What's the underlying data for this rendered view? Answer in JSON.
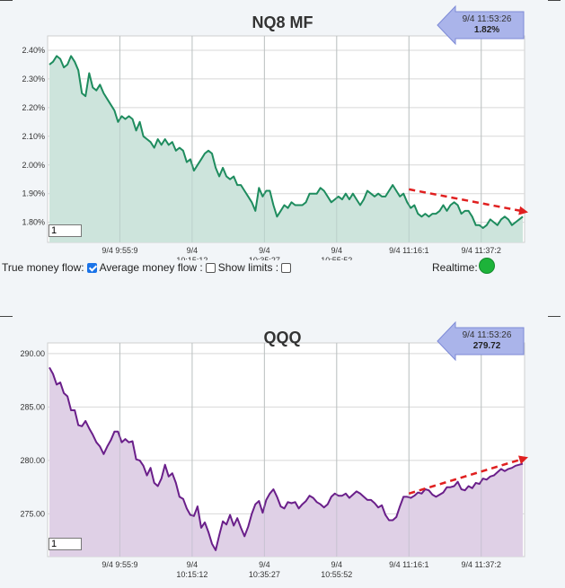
{
  "controls": {
    "true_money_flow_label": "True money flow:",
    "average_money_flow_label": "Average money flow :",
    "show_limits_label": "Show limits :",
    "realtime_label": "Realtime:",
    "realtime_color": "#1db33a"
  },
  "charts": [
    {
      "title": "NQ8 MF",
      "input_value": "1",
      "badge_time": "9/4 11:53:26",
      "badge_value": "1.82%",
      "line_color": "#1e8c5e",
      "fill_color": "#cde4dc",
      "arrow_color": "#e02020"
    },
    {
      "title": "QQQ",
      "input_value": "1",
      "badge_time": "9/4 11:53:26",
      "badge_value": "279.72",
      "line_color": "#6a1f8a",
      "fill_color": "#dfd0e6",
      "arrow_color": "#e02020"
    }
  ],
  "chart_data": [
    {
      "type": "area",
      "title": "NQ8 MF",
      "y_unit": "%",
      "ylim": [
        1.73,
        2.45
      ],
      "yticks": [
        1.8,
        1.9,
        2.0,
        2.1,
        2.2,
        2.3,
        2.4
      ],
      "ytick_labels": [
        "1.80%",
        "1.90%",
        "2.00%",
        "2.10%",
        "2.20%",
        "2.30%",
        "2.40%"
      ],
      "xticks": [
        {
          "idx": 20,
          "label": [
            "9/4 9:55:9"
          ]
        },
        {
          "idx": 40,
          "label": [
            "9/4",
            "10:15:12"
          ]
        },
        {
          "idx": 60,
          "label": [
            "9/4",
            "10:35:27"
          ]
        },
        {
          "idx": 80,
          "label": [
            "9/4",
            "10:55:52"
          ]
        },
        {
          "idx": 100,
          "label": [
            "9/4 11:16:1"
          ]
        },
        {
          "idx": 120,
          "label": [
            "9/4 11:37:2"
          ]
        }
      ],
      "n_points": 132,
      "grid": true,
      "trend_arrow": {
        "from": [
          100,
          1.915
        ],
        "to": [
          132,
          1.835
        ]
      },
      "values": [
        2.35,
        2.36,
        2.38,
        2.37,
        2.34,
        2.35,
        2.38,
        2.36,
        2.33,
        2.25,
        2.24,
        2.32,
        2.27,
        2.26,
        2.28,
        2.25,
        2.23,
        2.21,
        2.19,
        2.15,
        2.17,
        2.16,
        2.17,
        2.16,
        2.12,
        2.15,
        2.1,
        2.09,
        2.08,
        2.06,
        2.09,
        2.07,
        2.09,
        2.07,
        2.08,
        2.05,
        2.06,
        2.05,
        2.01,
        2.02,
        1.98,
        2.0,
        2.02,
        2.04,
        2.05,
        2.04,
        1.99,
        1.96,
        1.99,
        1.96,
        1.95,
        1.96,
        1.93,
        1.93,
        1.91,
        1.89,
        1.87,
        1.84,
        1.92,
        1.89,
        1.91,
        1.91,
        1.86,
        1.82,
        1.84,
        1.86,
        1.85,
        1.87,
        1.86,
        1.86,
        1.86,
        1.87,
        1.9,
        1.9,
        1.9,
        1.92,
        1.91,
        1.89,
        1.87,
        1.88,
        1.89,
        1.88,
        1.9,
        1.88,
        1.9,
        1.88,
        1.86,
        1.88,
        1.91,
        1.9,
        1.89,
        1.9,
        1.89,
        1.89,
        1.91,
        1.93,
        1.91,
        1.89,
        1.9,
        1.87,
        1.85,
        1.86,
        1.83,
        1.82,
        1.83,
        1.82,
        1.83,
        1.83,
        1.84,
        1.86,
        1.84,
        1.86,
        1.87,
        1.86,
        1.83,
        1.84,
        1.84,
        1.82,
        1.79,
        1.79,
        1.78,
        1.79,
        1.81,
        1.8,
        1.79,
        1.81,
        1.82,
        1.81,
        1.79,
        1.8,
        1.81,
        1.82
      ]
    },
    {
      "type": "area",
      "title": "QQQ",
      "ylim": [
        271,
        291
      ],
      "yticks": [
        275,
        280,
        285,
        290
      ],
      "ytick_labels": [
        "275.00",
        "280.00",
        "285.00",
        "290.00"
      ],
      "xticks": [
        {
          "idx": 20,
          "label": [
            "9/4 9:55:9"
          ]
        },
        {
          "idx": 40,
          "label": [
            "9/4",
            "10:15:12"
          ]
        },
        {
          "idx": 60,
          "label": [
            "9/4",
            "10:35:27"
          ]
        },
        {
          "idx": 80,
          "label": [
            "9/4",
            "10:55:52"
          ]
        },
        {
          "idx": 100,
          "label": [
            "9/4 11:16:1"
          ]
        },
        {
          "idx": 120,
          "label": [
            "9/4 11:37:2"
          ]
        }
      ],
      "n_points": 132,
      "grid": true,
      "trend_arrow": {
        "from": [
          100,
          276.9
        ],
        "to": [
          132,
          280.3
        ]
      },
      "values": [
        288.7,
        288.1,
        287.1,
        287.3,
        286.3,
        286.0,
        284.7,
        284.7,
        283.3,
        283.2,
        283.7,
        283.0,
        282.4,
        281.7,
        281.3,
        280.6,
        281.3,
        281.9,
        282.7,
        282.7,
        281.7,
        282.0,
        281.7,
        281.8,
        280.1,
        280.0,
        279.5,
        278.6,
        279.3,
        277.9,
        277.6,
        278.3,
        279.6,
        278.5,
        278.8,
        277.9,
        276.6,
        276.4,
        275.5,
        274.9,
        274.8,
        275.7,
        273.7,
        274.2,
        273.3,
        272.2,
        271.6,
        273.0,
        274.3,
        274.0,
        274.9,
        273.9,
        274.6,
        273.7,
        272.9,
        273.8,
        275.0,
        275.9,
        276.2,
        275.1,
        276.3,
        276.9,
        277.3,
        276.6,
        275.7,
        275.5,
        276.1,
        276.0,
        276.1,
        275.5,
        275.9,
        276.2,
        276.7,
        276.5,
        276.1,
        275.9,
        275.6,
        275.9,
        276.6,
        276.9,
        276.7,
        276.7,
        276.9,
        276.5,
        276.8,
        277.1,
        276.9,
        276.6,
        276.3,
        276.3,
        276.0,
        275.6,
        275.8,
        274.9,
        274.4,
        274.4,
        274.7,
        275.7,
        276.6,
        276.6,
        276.5,
        276.7,
        277.0,
        276.9,
        277.3,
        277.2,
        276.8,
        276.6,
        276.8,
        277.0,
        277.5,
        277.5,
        277.6,
        278.0,
        277.3,
        277.2,
        277.6,
        277.4,
        277.9,
        277.8,
        278.3,
        278.2,
        278.5,
        278.6,
        278.9,
        279.2,
        279.0,
        279.2,
        279.3,
        279.5,
        279.6,
        279.7
      ]
    }
  ]
}
